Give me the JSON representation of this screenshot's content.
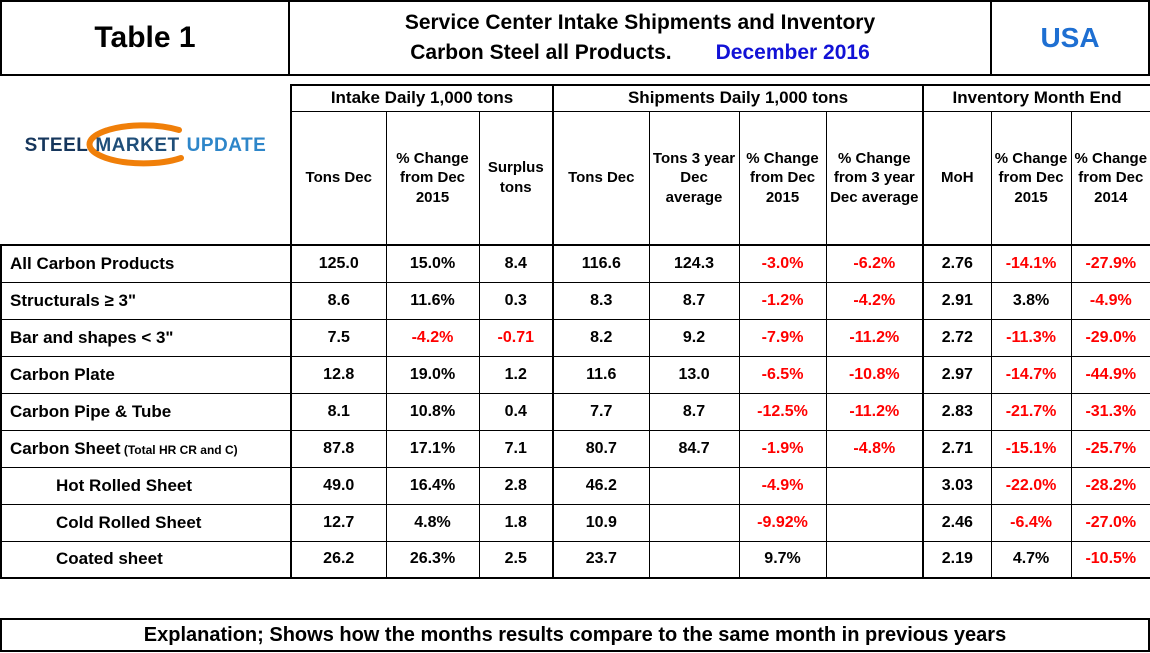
{
  "header": {
    "table_label": "Table 1",
    "title_line1": "Service Center Intake Shipments and Inventory",
    "title_line2": "Carbon Steel all Products.",
    "title_date": "December 2016"
  },
  "logo": {
    "word1": "STEEL",
    "word2": "MARKET",
    "word3": "UPDATE"
  },
  "chart_data": {
    "type": "table",
    "title": "Service Center Intake Shipments and Inventory Carbon Steel all Products. December 2016",
    "region": "USA",
    "column_groups": [
      {
        "label": "Intake Daily 1,000 tons",
        "span": 3
      },
      {
        "label": "Shipments Daily 1,000 tons",
        "span": 4
      },
      {
        "label": "Inventory Month End",
        "span": 3
      }
    ],
    "columns": [
      "Tons Dec",
      "% Change from Dec 2015",
      "Surplus tons",
      "Tons Dec",
      "Tons 3 year Dec average",
      "% Change from Dec 2015",
      "% Change from 3 year Dec average",
      "MoH",
      "% Change from Dec 2015",
      "% Change from Dec 2014"
    ],
    "rows": [
      {
        "label": "All Carbon Products",
        "suffix": "",
        "indent": false,
        "values": [
          "125.0",
          "15.0%",
          "8.4",
          "116.6",
          "124.3",
          "-3.0%",
          "-6.2%",
          "2.76",
          "-14.1%",
          "-27.9%"
        ]
      },
      {
        "label": "Structurals ≥ 3\"",
        "suffix": "",
        "indent": false,
        "values": [
          "8.6",
          "11.6%",
          "0.3",
          "8.3",
          "8.7",
          "-1.2%",
          "-4.2%",
          "2.91",
          "3.8%",
          "-4.9%"
        ]
      },
      {
        "label": "Bar and shapes < 3\"",
        "suffix": "",
        "indent": false,
        "values": [
          "7.5",
          "-4.2%",
          "-0.71",
          "8.2",
          "9.2",
          "-7.9%",
          "-11.2%",
          "2.72",
          "-11.3%",
          "-29.0%"
        ]
      },
      {
        "label": "Carbon Plate",
        "suffix": "",
        "indent": false,
        "values": [
          "12.8",
          "19.0%",
          "1.2",
          "11.6",
          "13.0",
          "-6.5%",
          "-10.8%",
          "2.97",
          "-14.7%",
          "-44.9%"
        ]
      },
      {
        "label": "Carbon Pipe & Tube",
        "suffix": "",
        "indent": false,
        "values": [
          "8.1",
          "10.8%",
          "0.4",
          "7.7",
          "8.7",
          "-12.5%",
          "-11.2%",
          "2.83",
          "-21.7%",
          "-31.3%"
        ]
      },
      {
        "label": "Carbon Sheet",
        "suffix": "(Total HR CR and C)",
        "indent": false,
        "values": [
          "87.8",
          "17.1%",
          "7.1",
          "80.7",
          "84.7",
          "-1.9%",
          "-4.8%",
          "2.71",
          "-15.1%",
          "-25.7%"
        ]
      },
      {
        "label": "Hot Rolled Sheet",
        "suffix": "",
        "indent": true,
        "values": [
          "49.0",
          "16.4%",
          "2.8",
          "46.2",
          "",
          "-4.9%",
          "",
          "3.03",
          "-22.0%",
          "-28.2%"
        ]
      },
      {
        "label": "Cold Rolled Sheet",
        "suffix": "",
        "indent": true,
        "values": [
          "12.7",
          "4.8%",
          "1.8",
          "10.9",
          "",
          "-9.92%",
          "",
          "2.46",
          "-6.4%",
          "-27.0%"
        ]
      },
      {
        "label": "Coated sheet",
        "suffix": "",
        "indent": true,
        "values": [
          "26.2",
          "26.3%",
          "2.5",
          "23.7",
          "",
          "9.7%",
          "",
          "2.19",
          "4.7%",
          "-10.5%"
        ]
      }
    ]
  },
  "footer": {
    "text": "Explanation; Shows how the months results compare to the same month in previous years"
  },
  "colors": {
    "negative": "#FF0000",
    "date_blue": "#1212D6",
    "usa_blue": "#1E6FD2",
    "logo_navy": "#16365C",
    "logo_blue": "#1F4E79",
    "logo_light": "#2E86C9",
    "logo_orange": "#F07F09"
  }
}
